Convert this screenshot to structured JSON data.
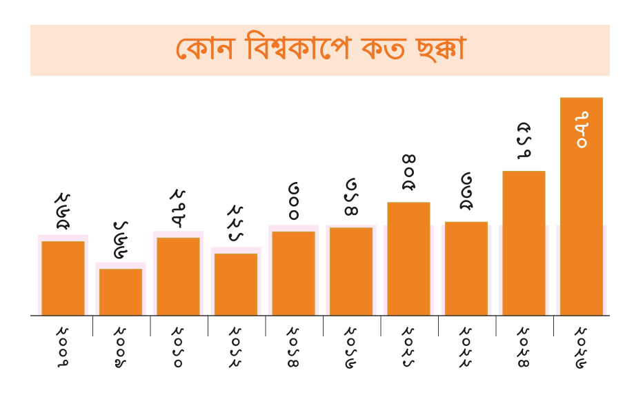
{
  "title": "কোন বিশ্বকাপে কত ছক্কা",
  "colors": {
    "bar": "#f08321",
    "bar_edge": "#c9a13a",
    "title_band": "#fde5d3",
    "title_text": "#ee7624",
    "bar_halo": "#fbe6f4",
    "axis": "#333333",
    "label": "#1a1a1a"
  },
  "chart_data": {
    "type": "bar",
    "title": "কোন বিশ্বকাপে কত ছক্কা",
    "xlabel": "",
    "ylabel": "",
    "categories": [
      "২০০৭",
      "২০০৯",
      "২০১০",
      "২০১২",
      "২০১৪",
      "২০১৬",
      "২০২১",
      "২০২২",
      "২০২৪",
      "২০২৬"
    ],
    "values": [
      265,
      166,
      278,
      221,
      300,
      314,
      405,
      335,
      517,
      780
    ],
    "value_labels": [
      "২৬৫",
      "১৬৬",
      "২৭৮",
      "২২১",
      "৩০০",
      "৩১৪",
      "৪০৫",
      "৩৩৫",
      "৫১৭",
      "৭৮০"
    ],
    "ylim": [
      0,
      780
    ],
    "grid": false,
    "legend": "none"
  }
}
